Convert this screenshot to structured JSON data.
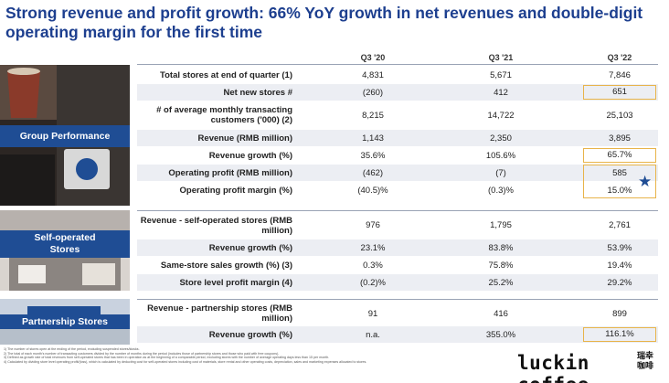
{
  "title": "Strong revenue and profit growth: 66% YoY growth in net revenues and double-digit operating margin for the first time",
  "columns": [
    "Q3 '20",
    "Q3 '21",
    "Q3 '22"
  ],
  "sections": {
    "group": "Group Performance",
    "self": "Self-operated Stores",
    "partner": "Partnership Stores"
  },
  "rows": [
    {
      "metric": "Total stores at end of quarter (1)",
      "v": [
        "4,831",
        "5,671",
        "7,846"
      ]
    },
    {
      "metric": "Net new stores #",
      "v": [
        "(260)",
        "412",
        "651"
      ]
    },
    {
      "metric": "# of average monthly transacting customers ('000) (2)",
      "v": [
        "8,215",
        "14,722",
        "25,103"
      ]
    },
    {
      "metric": "Revenue (RMB million)",
      "v": [
        "1,143",
        "2,350",
        "3,895"
      ]
    },
    {
      "metric": "Revenue growth (%)",
      "v": [
        "35.6%",
        "105.6%",
        "65.7%"
      ]
    },
    {
      "metric": "Operating profit (RMB million)",
      "v": [
        "(462)",
        "(7)",
        "585"
      ]
    },
    {
      "metric": "Operating profit margin (%)",
      "v": [
        "(40.5)%",
        "(0.3)%",
        "15.0%"
      ]
    },
    {
      "metric": "Revenue - self-operated stores (RMB million)",
      "v": [
        "976",
        "1,795",
        "2,761"
      ]
    },
    {
      "metric": "Revenue growth (%)",
      "v": [
        "23.1%",
        "83.8%",
        "53.9%"
      ]
    },
    {
      "metric": "Same-store sales growth (%) (3)",
      "v": [
        "0.3%",
        "75.8%",
        "19.4%"
      ]
    },
    {
      "metric": "Store level profit margin (4)",
      "v": [
        "(0.2)%",
        "25.2%",
        "29.2%"
      ]
    },
    {
      "metric": "Revenue - partnership stores (RMB million)",
      "v": [
        "91",
        "416",
        "899"
      ]
    },
    {
      "metric": "Revenue growth (%)",
      "v": [
        "n.a.",
        "355.0%",
        "116.1%"
      ]
    }
  ],
  "footnotes": [
    "1) The number of stores open at the ending of the period, excluding suspended stores/kiosks.",
    "2) The total of each month's number of transacting customers divided by the number of months during the period (includes those of partnership stores and those who paid with free coupons).",
    "3) Defined as growth rate of total revenues from self-operated stores that has been in operation as at the beginning of a comparable period, excluding stores with the number of average operating days less than 15 per month.",
    "4) Calculated by dividing store level operating profit/(loss), which is calculated by deducting cost for self-operated stores including cost of materials, store rental and other operating costs, depreciation, sales and marketing expenses allocated to stores."
  ],
  "logo": {
    "text": "luckin coffee",
    "cn": "瑞幸 咖啡"
  },
  "accent_color": "#1f4d94",
  "highlight_color": "#e8b44a"
}
